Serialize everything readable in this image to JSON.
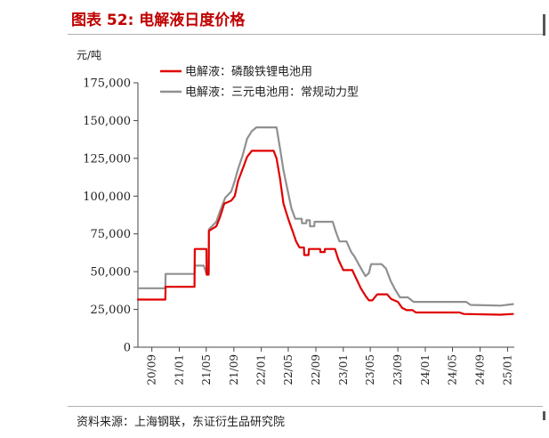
{
  "header": {
    "title": "图表 52: 电解液日度价格"
  },
  "footer": {
    "source": "资料来源：上海钢联，东证衍生品研究院"
  },
  "chart_data": {
    "type": "line",
    "ylabel": "元/吨",
    "ylim": [
      0,
      175000
    ],
    "yticks": [
      0,
      25000,
      50000,
      75000,
      100000,
      125000,
      150000,
      175000
    ],
    "ytick_labels": [
      "0",
      "25,000",
      "50,000",
      "75,000",
      "100,000",
      "125,000",
      "150,000",
      "175,000"
    ],
    "xlim": [
      "2020-07-01",
      "2025-01-31"
    ],
    "xticks": [
      "2020-09-01",
      "2021-01-01",
      "2021-05-01",
      "2021-09-01",
      "2022-01-01",
      "2022-05-01",
      "2022-09-01",
      "2023-01-01",
      "2023-05-01",
      "2023-09-01",
      "2024-01-01",
      "2024-05-01",
      "2024-09-01",
      "2025-01-01"
    ],
    "xtick_labels": [
      "20/09",
      "21/01",
      "21/05",
      "21/09",
      "22/01",
      "22/05",
      "22/09",
      "23/01",
      "23/05",
      "23/09",
      "24/01",
      "24/05",
      "24/09",
      "25/01"
    ],
    "grid": false,
    "legend_position": "top-left",
    "series": [
      {
        "name": "电解液：磷酸铁锂电池用",
        "color": "#e00000",
        "points": [
          [
            "2020-07-01",
            31500
          ],
          [
            "2020-10-31",
            31500
          ],
          [
            "2020-11-01",
            40000
          ],
          [
            "2021-03-10",
            40000
          ],
          [
            "2021-03-11",
            65000
          ],
          [
            "2021-05-02",
            65000
          ],
          [
            "2021-05-03",
            48000
          ],
          [
            "2021-05-12",
            48000
          ],
          [
            "2021-05-13",
            77000
          ],
          [
            "2021-06-15",
            80000
          ],
          [
            "2021-07-01",
            86000
          ],
          [
            "2021-07-20",
            95000
          ],
          [
            "2021-08-20",
            97000
          ],
          [
            "2021-09-05",
            100000
          ],
          [
            "2021-09-20",
            110000
          ],
          [
            "2021-10-10",
            118000
          ],
          [
            "2021-10-30",
            126000
          ],
          [
            "2021-11-20",
            130000
          ],
          [
            "2022-02-25",
            130000
          ],
          [
            "2022-03-10",
            125000
          ],
          [
            "2022-03-25",
            112000
          ],
          [
            "2022-04-10",
            95000
          ],
          [
            "2022-05-01",
            85000
          ],
          [
            "2022-05-20",
            77000
          ],
          [
            "2022-06-05",
            70000
          ],
          [
            "2022-06-20",
            66000
          ],
          [
            "2022-07-10",
            66000
          ],
          [
            "2022-07-11",
            61000
          ],
          [
            "2022-07-30",
            61000
          ],
          [
            "2022-08-01",
            65000
          ],
          [
            "2022-09-20",
            65000
          ],
          [
            "2022-09-21",
            63000
          ],
          [
            "2022-10-10",
            63000
          ],
          [
            "2022-10-11",
            65000
          ],
          [
            "2022-11-25",
            65000
          ],
          [
            "2022-12-10",
            58000
          ],
          [
            "2023-01-01",
            51000
          ],
          [
            "2023-02-10",
            51000
          ],
          [
            "2023-03-01",
            45000
          ],
          [
            "2023-03-20",
            39000
          ],
          [
            "2023-04-10",
            34000
          ],
          [
            "2023-04-25",
            31000
          ],
          [
            "2023-05-10",
            31000
          ],
          [
            "2023-06-01",
            35000
          ],
          [
            "2023-07-15",
            35000
          ],
          [
            "2023-08-01",
            32000
          ],
          [
            "2023-09-01",
            30000
          ],
          [
            "2023-09-20",
            26000
          ],
          [
            "2023-10-10",
            24500
          ],
          [
            "2023-11-05",
            24500
          ],
          [
            "2023-11-20",
            23000
          ],
          [
            "2024-06-01",
            23000
          ],
          [
            "2024-06-20",
            22000
          ],
          [
            "2024-12-01",
            21500
          ],
          [
            "2025-01-25",
            22000
          ]
        ]
      },
      {
        "name": "电解液：三元电池用：常规动力型",
        "color": "#909090",
        "points": [
          [
            "2020-07-01",
            39000
          ],
          [
            "2020-10-31",
            39000
          ],
          [
            "2020-11-01",
            48500
          ],
          [
            "2021-03-10",
            48500
          ],
          [
            "2021-03-11",
            54000
          ],
          [
            "2021-04-20",
            54000
          ],
          [
            "2021-05-01",
            49000
          ],
          [
            "2021-05-12",
            49000
          ],
          [
            "2021-05-13",
            78000
          ],
          [
            "2021-06-15",
            83000
          ],
          [
            "2021-07-01",
            90000
          ],
          [
            "2021-07-25",
            99000
          ],
          [
            "2021-08-20",
            103000
          ],
          [
            "2021-09-05",
            110000
          ],
          [
            "2021-09-20",
            118000
          ],
          [
            "2021-10-10",
            127000
          ],
          [
            "2021-10-30",
            138000
          ],
          [
            "2021-11-20",
            143000
          ],
          [
            "2021-12-10",
            145500
          ],
          [
            "2022-03-10",
            145500
          ],
          [
            "2022-03-25",
            132000
          ],
          [
            "2022-04-10",
            117000
          ],
          [
            "2022-04-28",
            104000
          ],
          [
            "2022-05-15",
            92000
          ],
          [
            "2022-06-01",
            85000
          ],
          [
            "2022-06-30",
            85000
          ],
          [
            "2022-07-01",
            82000
          ],
          [
            "2022-07-20",
            82000
          ],
          [
            "2022-07-21",
            84000
          ],
          [
            "2022-08-05",
            84000
          ],
          [
            "2022-08-06",
            80000
          ],
          [
            "2022-08-25",
            80000
          ],
          [
            "2022-08-26",
            83000
          ],
          [
            "2022-11-15",
            83000
          ],
          [
            "2022-11-30",
            76000
          ],
          [
            "2022-12-15",
            70000
          ],
          [
            "2023-01-15",
            70000
          ],
          [
            "2023-02-05",
            63000
          ],
          [
            "2023-02-20",
            60000
          ],
          [
            "2023-03-10",
            55000
          ],
          [
            "2023-03-25",
            51000
          ],
          [
            "2023-04-10",
            47000
          ],
          [
            "2023-04-25",
            49000
          ],
          [
            "2023-05-05",
            55000
          ],
          [
            "2023-06-20",
            55000
          ],
          [
            "2023-07-10",
            52000
          ],
          [
            "2023-07-30",
            44000
          ],
          [
            "2023-08-20",
            38000
          ],
          [
            "2023-09-10",
            33000
          ],
          [
            "2023-10-15",
            33000
          ],
          [
            "2023-11-10",
            30000
          ],
          [
            "2024-07-01",
            30000
          ],
          [
            "2024-07-20",
            28000
          ],
          [
            "2024-12-01",
            27500
          ],
          [
            "2025-01-25",
            28500
          ]
        ]
      }
    ]
  }
}
